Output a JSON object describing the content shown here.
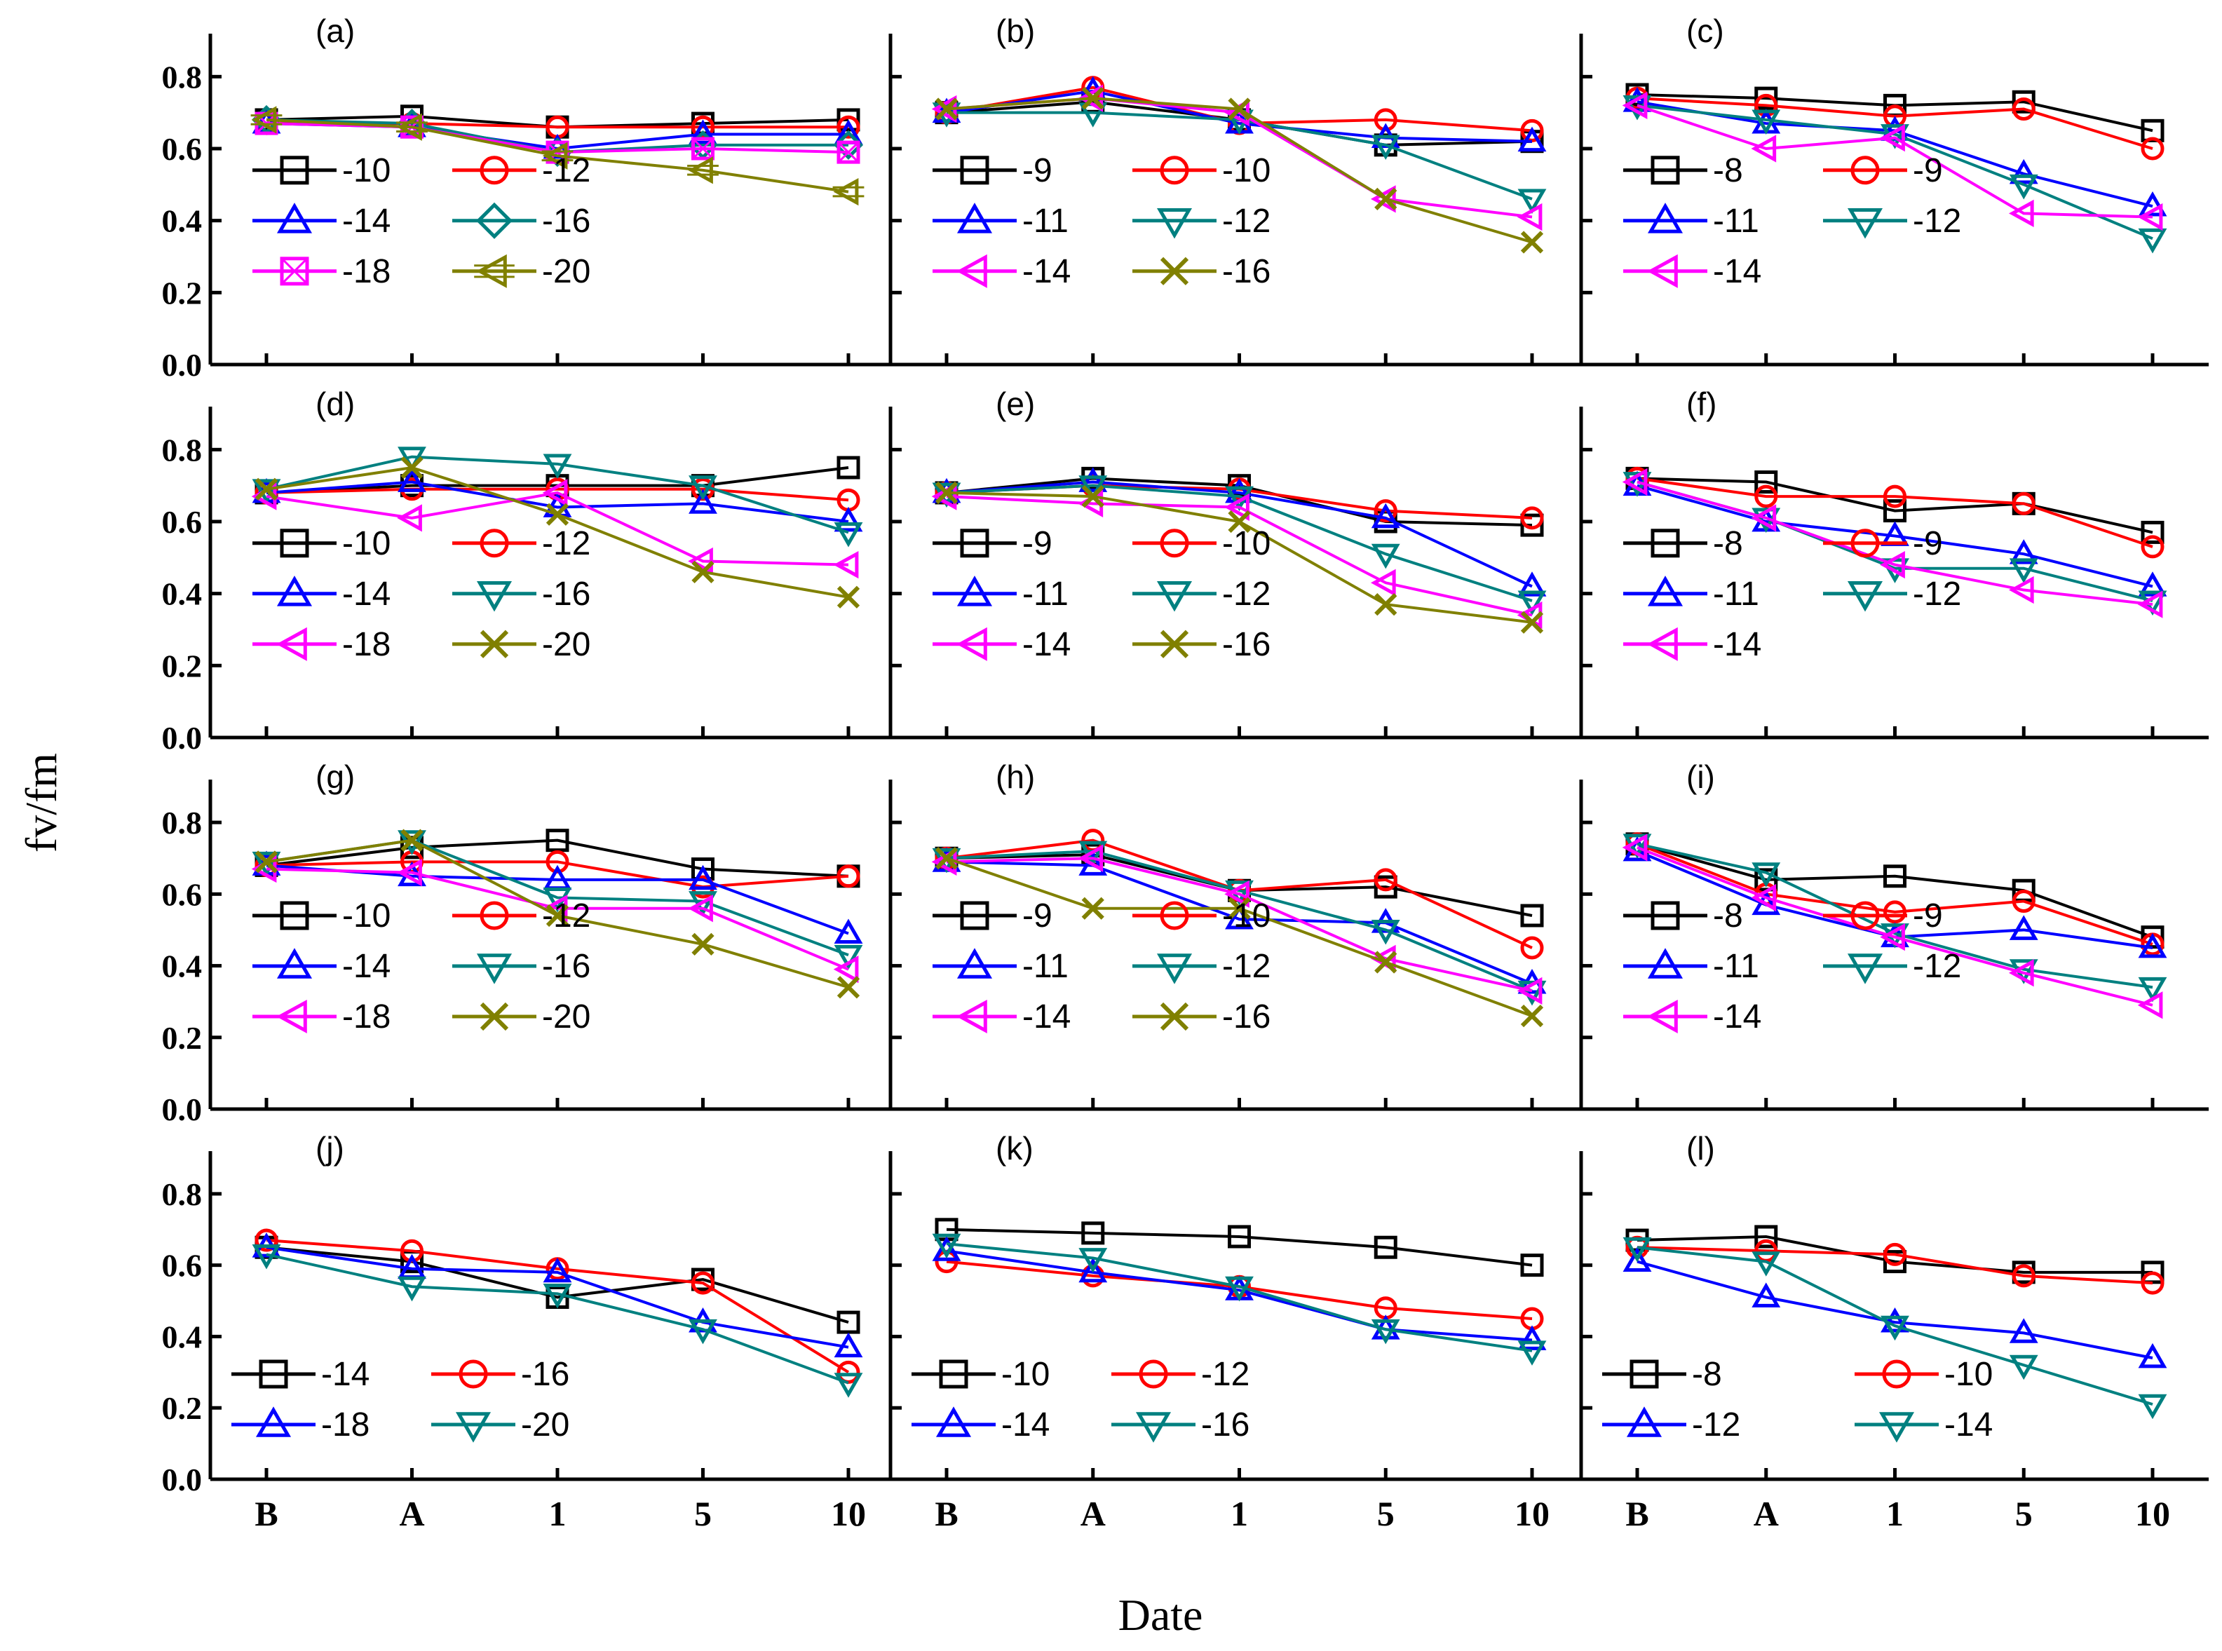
{
  "figure": {
    "ylabel": "fv/fm",
    "xlabel": "Date",
    "x_categories": [
      "B",
      "A",
      "1",
      "5",
      "10"
    ],
    "y_ticks": [
      "0.0",
      "0.2",
      "0.4",
      "0.6",
      "0.8"
    ],
    "ylim": [
      0,
      0.9
    ],
    "series_styles": {
      "s0": {
        "color": "#000000",
        "marker": "square"
      },
      "s1": {
        "color": "#ff0000",
        "marker": "circle"
      },
      "s2": {
        "color": "#0000ff",
        "marker": "triangle-up"
      },
      "s3": {
        "color": "#008080",
        "marker": "triangle-down"
      },
      "s3d": {
        "color": "#008080",
        "marker": "diamond"
      },
      "s4": {
        "color": "#ff00ff",
        "marker": "left-triangle"
      },
      "s4x": {
        "color": "#ff00ff",
        "marker": "crossed-square"
      },
      "s5": {
        "color": "#808000",
        "marker": "x"
      },
      "s5h": {
        "color": "#808000",
        "marker": "left-triangle-hash"
      }
    }
  },
  "chart_data": [
    {
      "type": "line",
      "panel": "(a)",
      "categories": [
        "B",
        "A",
        "1",
        "5",
        "10"
      ],
      "series": [
        {
          "name": "-10",
          "style": "s0",
          "values": [
            0.68,
            0.69,
            0.66,
            0.67,
            0.68
          ]
        },
        {
          "name": "-12",
          "style": "s1",
          "values": [
            0.67,
            0.67,
            0.66,
            0.66,
            0.66
          ]
        },
        {
          "name": "-14",
          "style": "s2",
          "values": [
            0.67,
            0.66,
            0.6,
            0.64,
            0.64
          ]
        },
        {
          "name": "-16",
          "style": "s3d",
          "values": [
            0.68,
            0.67,
            0.59,
            0.61,
            0.61
          ]
        },
        {
          "name": "-18",
          "style": "s4x",
          "values": [
            0.67,
            0.66,
            0.59,
            0.6,
            0.59
          ]
        },
        {
          "name": "-20",
          "style": "s5h",
          "values": [
            0.68,
            0.66,
            0.58,
            0.54,
            0.48
          ]
        }
      ]
    },
    {
      "type": "line",
      "panel": "(b)",
      "categories": [
        "B",
        "A",
        "1",
        "5",
        "10"
      ],
      "series": [
        {
          "name": "-9",
          "style": "s0",
          "values": [
            0.7,
            0.73,
            0.68,
            0.61,
            0.62
          ]
        },
        {
          "name": "-10",
          "style": "s1",
          "values": [
            0.7,
            0.77,
            0.67,
            0.68,
            0.65
          ]
        },
        {
          "name": "-11",
          "style": "s2",
          "values": [
            0.7,
            0.76,
            0.67,
            0.63,
            0.62
          ]
        },
        {
          "name": "-12",
          "style": "s3",
          "values": [
            0.7,
            0.7,
            0.68,
            0.61,
            0.46
          ]
        },
        {
          "name": "-14",
          "style": "s4",
          "values": [
            0.71,
            0.74,
            0.7,
            0.46,
            0.41
          ]
        },
        {
          "name": "-16",
          "style": "s5",
          "values": [
            0.71,
            0.74,
            0.71,
            0.46,
            0.34
          ]
        }
      ]
    },
    {
      "type": "line",
      "panel": "(c)",
      "categories": [
        "B",
        "A",
        "1",
        "5",
        "10"
      ],
      "series": [
        {
          "name": "-8",
          "style": "s0",
          "values": [
            0.75,
            0.74,
            0.72,
            0.73,
            0.65
          ]
        },
        {
          "name": "-9",
          "style": "s1",
          "values": [
            0.74,
            0.72,
            0.69,
            0.71,
            0.6
          ]
        },
        {
          "name": "-11",
          "style": "s2",
          "values": [
            0.73,
            0.67,
            0.65,
            0.53,
            0.44
          ]
        },
        {
          "name": "-12",
          "style": "s3",
          "values": [
            0.72,
            0.68,
            0.64,
            0.5,
            0.35
          ]
        },
        {
          "name": "-14",
          "style": "s4",
          "values": [
            0.72,
            0.6,
            0.63,
            0.42,
            0.41
          ]
        }
      ]
    },
    {
      "type": "line",
      "panel": "(d)",
      "categories": [
        "B",
        "A",
        "1",
        "5",
        "10"
      ],
      "series": [
        {
          "name": "-10",
          "style": "s0",
          "values": [
            0.68,
            0.7,
            0.7,
            0.7,
            0.75
          ]
        },
        {
          "name": "-12",
          "style": "s1",
          "values": [
            0.68,
            0.69,
            0.69,
            0.69,
            0.66
          ]
        },
        {
          "name": "-14",
          "style": "s2",
          "values": [
            0.68,
            0.71,
            0.64,
            0.65,
            0.6
          ]
        },
        {
          "name": "-16",
          "style": "s3",
          "values": [
            0.69,
            0.78,
            0.76,
            0.7,
            0.57
          ]
        },
        {
          "name": "-18",
          "style": "s4",
          "values": [
            0.67,
            0.61,
            0.68,
            0.49,
            0.48
          ]
        },
        {
          "name": "-20",
          "style": "s5",
          "values": [
            0.69,
            0.75,
            0.62,
            0.46,
            0.39
          ]
        }
      ]
    },
    {
      "type": "line",
      "panel": "(e)",
      "categories": [
        "B",
        "A",
        "1",
        "5",
        "10"
      ],
      "series": [
        {
          "name": "-9",
          "style": "s0",
          "values": [
            0.68,
            0.72,
            0.7,
            0.6,
            0.59
          ]
        },
        {
          "name": "-10",
          "style": "s1",
          "values": [
            0.68,
            0.7,
            0.69,
            0.63,
            0.61
          ]
        },
        {
          "name": "-11",
          "style": "s2",
          "values": [
            0.68,
            0.71,
            0.68,
            0.61,
            0.42
          ]
        },
        {
          "name": "-12",
          "style": "s3",
          "values": [
            0.68,
            0.7,
            0.67,
            0.51,
            0.38
          ]
        },
        {
          "name": "-14",
          "style": "s4",
          "values": [
            0.67,
            0.65,
            0.64,
            0.43,
            0.34
          ]
        },
        {
          "name": "-16",
          "style": "s5",
          "values": [
            0.68,
            0.67,
            0.6,
            0.37,
            0.32
          ]
        }
      ]
    },
    {
      "type": "line",
      "panel": "(f)",
      "categories": [
        "B",
        "A",
        "1",
        "5",
        "10"
      ],
      "series": [
        {
          "name": "-8",
          "style": "s0",
          "values": [
            0.72,
            0.71,
            0.63,
            0.65,
            0.57
          ]
        },
        {
          "name": "-9",
          "style": "s1",
          "values": [
            0.72,
            0.67,
            0.67,
            0.65,
            0.53
          ]
        },
        {
          "name": "-11",
          "style": "s2",
          "values": [
            0.7,
            0.6,
            0.56,
            0.51,
            0.42
          ]
        },
        {
          "name": "-12",
          "style": "s3",
          "values": [
            0.71,
            0.61,
            0.47,
            0.47,
            0.38
          ]
        },
        {
          "name": "-14",
          "style": "s4",
          "values": [
            0.71,
            0.61,
            0.48,
            0.41,
            0.37
          ]
        }
      ]
    },
    {
      "type": "line",
      "panel": "(g)",
      "categories": [
        "B",
        "A",
        "1",
        "5",
        "10"
      ],
      "series": [
        {
          "name": "-10",
          "style": "s0",
          "values": [
            0.68,
            0.73,
            0.75,
            0.67,
            0.65
          ]
        },
        {
          "name": "-12",
          "style": "s1",
          "values": [
            0.68,
            0.69,
            0.69,
            0.62,
            0.65
          ]
        },
        {
          "name": "-14",
          "style": "s2",
          "values": [
            0.68,
            0.65,
            0.64,
            0.64,
            0.49
          ]
        },
        {
          "name": "-16",
          "style": "s3",
          "values": [
            0.69,
            0.75,
            0.59,
            0.58,
            0.43
          ]
        },
        {
          "name": "-18",
          "style": "s4",
          "values": [
            0.67,
            0.66,
            0.56,
            0.56,
            0.39
          ]
        },
        {
          "name": "-20",
          "style": "s5",
          "values": [
            0.69,
            0.75,
            0.54,
            0.46,
            0.34
          ]
        }
      ]
    },
    {
      "type": "line",
      "panel": "(h)",
      "categories": [
        "B",
        "A",
        "1",
        "5",
        "10"
      ],
      "series": [
        {
          "name": "-9",
          "style": "s0",
          "values": [
            0.7,
            0.71,
            0.61,
            0.62,
            0.54
          ]
        },
        {
          "name": "-10",
          "style": "s1",
          "values": [
            0.7,
            0.75,
            0.61,
            0.64,
            0.45
          ]
        },
        {
          "name": "-11",
          "style": "s2",
          "values": [
            0.69,
            0.68,
            0.53,
            0.52,
            0.35
          ]
        },
        {
          "name": "-12",
          "style": "s3",
          "values": [
            0.7,
            0.72,
            0.61,
            0.5,
            0.33
          ]
        },
        {
          "name": "-14",
          "style": "s4",
          "values": [
            0.69,
            0.7,
            0.6,
            0.42,
            0.33
          ]
        },
        {
          "name": "-16",
          "style": "s5",
          "values": [
            0.7,
            0.56,
            0.56,
            0.41,
            0.26
          ]
        }
      ]
    },
    {
      "type": "line",
      "panel": "(i)",
      "categories": [
        "B",
        "A",
        "1",
        "5",
        "10"
      ],
      "series": [
        {
          "name": "-8",
          "style": "s0",
          "values": [
            0.74,
            0.64,
            0.65,
            0.61,
            0.48
          ]
        },
        {
          "name": "-9",
          "style": "s1",
          "values": [
            0.74,
            0.6,
            0.55,
            0.58,
            0.46
          ]
        },
        {
          "name": "-11",
          "style": "s2",
          "values": [
            0.72,
            0.57,
            0.48,
            0.5,
            0.45
          ]
        },
        {
          "name": "-12",
          "style": "s3",
          "values": [
            0.74,
            0.66,
            0.49,
            0.39,
            0.34
          ]
        },
        {
          "name": "-14",
          "style": "s4",
          "values": [
            0.73,
            0.59,
            0.48,
            0.38,
            0.29
          ]
        }
      ]
    },
    {
      "type": "line",
      "panel": "(j)",
      "categories": [
        "B",
        "A",
        "1",
        "5",
        "10"
      ],
      "series": [
        {
          "name": "-14",
          "style": "s0",
          "values": [
            0.65,
            0.61,
            0.51,
            0.56,
            0.44
          ]
        },
        {
          "name": "-16",
          "style": "s1",
          "values": [
            0.67,
            0.64,
            0.59,
            0.55,
            0.3
          ]
        },
        {
          "name": "-18",
          "style": "s2",
          "values": [
            0.65,
            0.59,
            0.58,
            0.44,
            0.37
          ]
        },
        {
          "name": "-20",
          "style": "s3",
          "values": [
            0.63,
            0.54,
            0.52,
            0.42,
            0.27
          ]
        }
      ]
    },
    {
      "type": "line",
      "panel": "(k)",
      "categories": [
        "B",
        "A",
        "1",
        "5",
        "10"
      ],
      "series": [
        {
          "name": "-10",
          "style": "s0",
          "values": [
            0.7,
            0.69,
            0.68,
            0.65,
            0.6
          ]
        },
        {
          "name": "-12",
          "style": "s1",
          "values": [
            0.61,
            0.57,
            0.54,
            0.48,
            0.45
          ]
        },
        {
          "name": "-14",
          "style": "s2",
          "values": [
            0.64,
            0.58,
            0.53,
            0.42,
            0.39
          ]
        },
        {
          "name": "-16",
          "style": "s3",
          "values": [
            0.66,
            0.62,
            0.54,
            0.42,
            0.36
          ]
        }
      ]
    },
    {
      "type": "line",
      "panel": "(l)",
      "categories": [
        "B",
        "A",
        "1",
        "5",
        "10"
      ],
      "series": [
        {
          "name": "-8",
          "style": "s0",
          "values": [
            0.67,
            0.68,
            0.61,
            0.58,
            0.58
          ]
        },
        {
          "name": "-10",
          "style": "s1",
          "values": [
            0.65,
            0.64,
            0.63,
            0.57,
            0.55
          ]
        },
        {
          "name": "-12",
          "style": "s2",
          "values": [
            0.61,
            0.51,
            0.44,
            0.41,
            0.34
          ]
        },
        {
          "name": "-14",
          "style": "s3",
          "values": [
            0.65,
            0.61,
            0.43,
            0.32,
            0.21
          ]
        }
      ]
    }
  ]
}
